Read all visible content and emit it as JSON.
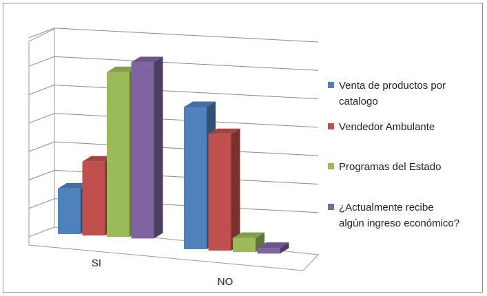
{
  "chart_data": {
    "type": "bar",
    "style": "3d-clustered-column",
    "categories": [
      "SI",
      "NO"
    ],
    "series": [
      {
        "name": "Venta de productos por catalogo",
        "color": "#4f81bd",
        "values": [
          1.6,
          5.0
        ]
      },
      {
        "name": "Vendedor Ambulante",
        "color": "#c0504d",
        "values": [
          2.6,
          4.1
        ]
      },
      {
        "name": "Programas del Estado",
        "color": "#9bbb59",
        "values": [
          5.8,
          0.5
        ]
      },
      {
        "name": "¿Actualmente recibe algún ingreso económico?",
        "color": "#8064a2",
        "values": [
          6.2,
          0.2
        ]
      }
    ],
    "ylim": [
      0,
      7
    ],
    "grid": true,
    "legend": "right",
    "title": "",
    "xlabel": "",
    "ylabel": ""
  },
  "legend": {
    "entries": [
      {
        "lines": [
          "Venta de productos por",
          "catalogo"
        ]
      },
      {
        "lines": [
          "Vendedor Ambulante"
        ]
      },
      {
        "lines": [
          "Programas del Estado"
        ]
      },
      {
        "lines": [
          "¿Actualmente recibe",
          "algún ingreso económico?"
        ]
      }
    ]
  }
}
